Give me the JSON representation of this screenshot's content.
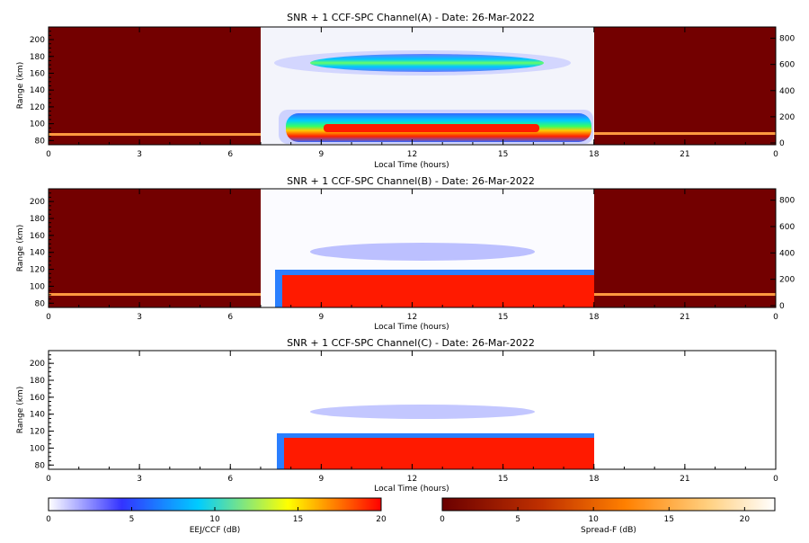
{
  "chart_data": [
    {
      "type": "heatmap",
      "title": "SNR + 1 CCF-SPC Channel(A) - Date: 26-Mar-2022",
      "xlabel": "Local Time (hours)",
      "ylabel": "Range (km)",
      "xlim": [
        0,
        24
      ],
      "ylim": [
        75,
        215
      ],
      "x_ticks": [
        "0",
        "3",
        "6",
        "9",
        "12",
        "15",
        "18",
        "21",
        "0"
      ],
      "y_ticks": [
        "80",
        "100",
        "120",
        "140",
        "160",
        "180",
        "200"
      ],
      "right_ticks": [
        "0",
        "200",
        "400",
        "600",
        "800"
      ],
      "segments": {
        "night1": [
          0,
          7
        ],
        "day": [
          7,
          18
        ],
        "night2": [
          18,
          24
        ]
      },
      "features": {
        "eej_layer_km": [
          90,
          120
        ],
        "upper_echo_km": [
          165,
          185
        ],
        "upper_echo_hours": [
          8.5,
          15.3
        ],
        "spread_f_line_km": 93
      }
    },
    {
      "type": "heatmap",
      "title": "SNR + 1 CCF-SPC Channel(B) - Date: 26-Mar-2022",
      "xlabel": "Local Time (hours)",
      "ylabel": "Range (km)",
      "xlim": [
        0,
        24
      ],
      "ylim": [
        75,
        215
      ],
      "x_ticks": [
        "0",
        "3",
        "6",
        "9",
        "12",
        "15",
        "18",
        "21",
        "0"
      ],
      "y_ticks": [
        "80",
        "100",
        "120",
        "140",
        "160",
        "180",
        "200"
      ],
      "right_ticks": [
        "0",
        "200",
        "400",
        "600",
        "800"
      ],
      "segments": {
        "night1": [
          0,
          7
        ],
        "day": [
          7,
          18
        ],
        "night2": [
          18,
          24
        ]
      },
      "features": {
        "eej_layer_km": [
          80,
          120
        ],
        "upper_echo_km": [
          140,
          160
        ],
        "upper_echo_hours": [
          9.5,
          14.8
        ],
        "spread_f_line_km": 93
      }
    },
    {
      "type": "heatmap",
      "title": "SNR + 1 CCF-SPC Channel(C) - Date: 26-Mar-2022",
      "xlabel": "Local Time (hours)",
      "ylabel": "Range (km)",
      "xlim": [
        0,
        24
      ],
      "ylim": [
        75,
        215
      ],
      "x_ticks": [
        "0",
        "3",
        "6",
        "9",
        "12",
        "15",
        "18",
        "21",
        "0"
      ],
      "y_ticks": [
        "80",
        "100",
        "120",
        "140",
        "160",
        "180",
        "200"
      ],
      "segments": {
        "day": [
          7,
          18
        ]
      },
      "features": {
        "eej_layer_km": [
          80,
          120
        ],
        "upper_echo_km": [
          138,
          152
        ],
        "upper_echo_hours": [
          9.5,
          14.8
        ]
      }
    }
  ],
  "colorbars": [
    {
      "label": "EEJ/CCF (dB)",
      "range": [
        0,
        20
      ],
      "ticks": [
        "0",
        "5",
        "10",
        "15",
        "20"
      ],
      "colormap": [
        "#ffffff",
        "#3333ff",
        "#00ccff",
        "#ffff00",
        "#ff0000"
      ]
    },
    {
      "label": "Spread-F (dB)",
      "range": [
        0,
        22
      ],
      "ticks": [
        "0",
        "5",
        "10",
        "15",
        "20"
      ],
      "colormap": [
        "#6b0000",
        "#c03000",
        "#ff8000",
        "#ffd080",
        "#ffffff"
      ]
    }
  ],
  "colors": {
    "night_background": "#730000",
    "eej_core": "#ff1a00"
  }
}
